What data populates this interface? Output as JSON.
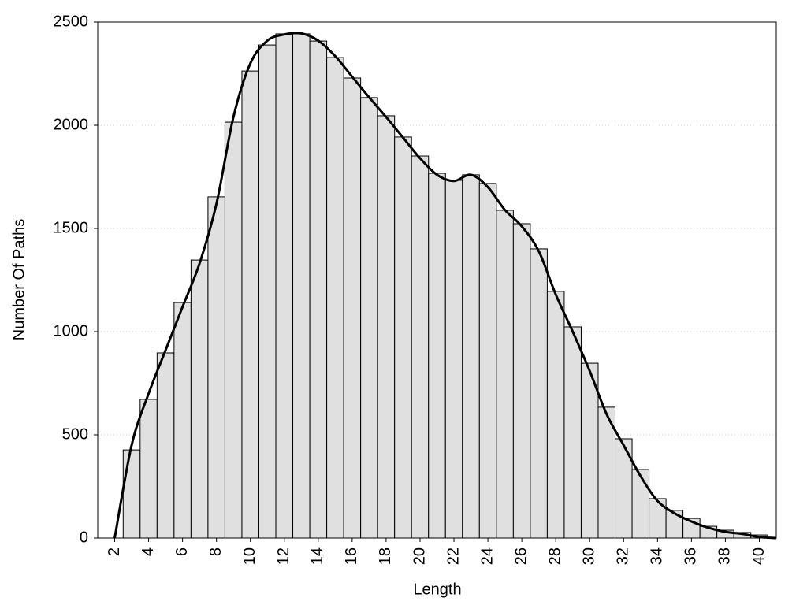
{
  "chart_data": {
    "type": "histogram",
    "xlabel": "Length",
    "ylabel": "Number Of Paths",
    "bins": [
      2.5,
      3.5,
      4.5,
      5.5,
      6.5,
      7.5,
      8.5,
      9.5,
      10.5,
      11.5,
      12.5,
      13.5,
      14.5,
      15.5,
      16.5,
      17.5,
      18.5,
      19.5,
      20.5,
      21.5,
      22.5,
      23.5,
      24.5,
      25.5,
      26.5,
      27.5,
      28.5,
      29.5,
      30.5,
      31.5,
      32.5,
      33.5,
      34.5,
      35.5,
      36.5,
      37.5,
      38.5,
      39.5,
      40.5
    ],
    "counts": [
      427,
      672,
      897,
      1141,
      1347,
      1653,
      2015,
      2263,
      2389,
      2443,
      2443,
      2408,
      2328,
      2229,
      2134,
      2046,
      1943,
      1851,
      1767,
      1733,
      1760,
      1718,
      1588,
      1523,
      1401,
      1195,
      1023,
      847,
      634,
      481,
      332,
      191,
      134,
      95,
      57,
      38,
      27,
      15
    ],
    "color": "#e0e0e0",
    "edgecolor": "#000000",
    "overlay": {
      "type": "line",
      "color": "#000000",
      "x": [
        2,
        3,
        4,
        5,
        6,
        7,
        8,
        9,
        10,
        11,
        12,
        13,
        14,
        15,
        16,
        17,
        18,
        19,
        20,
        21,
        22,
        23,
        24,
        25,
        26,
        27,
        28,
        29,
        30,
        31,
        32,
        33,
        34,
        35,
        36,
        37,
        38,
        39,
        40,
        41
      ],
      "values": [
        0,
        450,
        700,
        910,
        1120,
        1330,
        1620,
        2040,
        2300,
        2410,
        2440,
        2445,
        2410,
        2335,
        2235,
        2135,
        2040,
        1940,
        1840,
        1760,
        1730,
        1760,
        1700,
        1590,
        1510,
        1390,
        1180,
        1000,
        810,
        600,
        450,
        300,
        180,
        120,
        80,
        50,
        30,
        20,
        5,
        0
      ]
    },
    "xlim": [
      1,
      41
    ],
    "xticks": [
      2,
      4,
      6,
      8,
      10,
      12,
      14,
      16,
      18,
      20,
      22,
      24,
      26,
      28,
      30,
      32,
      34,
      36,
      38,
      40
    ],
    "ylim": [
      0,
      2500
    ],
    "yticks": [
      0,
      500,
      1000,
      1500,
      2000,
      2500
    ],
    "grid": true
  }
}
